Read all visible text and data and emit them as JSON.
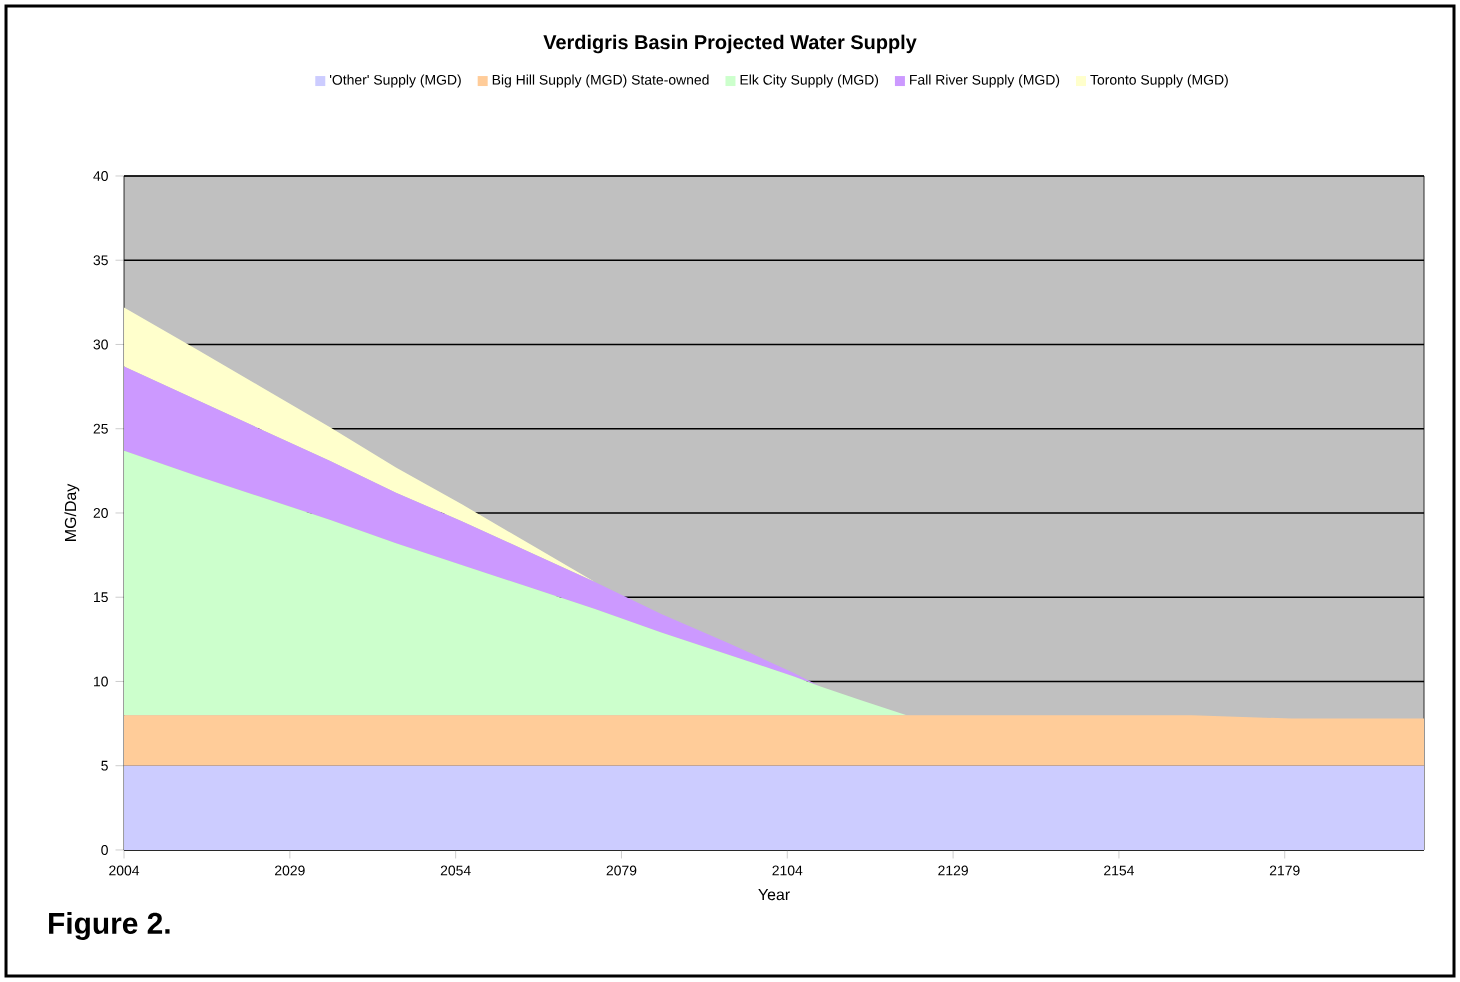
{
  "chart_data": {
    "type": "area",
    "stacked": true,
    "title": "Verdigris Basin Projected Water Supply",
    "xlabel": "Year",
    "ylabel": "MG/Day",
    "x": [
      2004,
      2015,
      2025,
      2035,
      2045,
      2055,
      2065,
      2075,
      2085,
      2095,
      2105,
      2109,
      2115,
      2122,
      2135,
      2150,
      2165,
      2180,
      2200
    ],
    "series": [
      {
        "name": "'Other' Supply (MGD)",
        "color": "#ccccff",
        "values": [
          5,
          5,
          5,
          5,
          5,
          5,
          5,
          5,
          5,
          5,
          5,
          5,
          5,
          5,
          5,
          5,
          5,
          5,
          5
        ]
      },
      {
        "name": "Big Hill Supply (MGD) State-owned",
        "color": "#ffcc99",
        "values": [
          3,
          3,
          3,
          3,
          3,
          3,
          3,
          3,
          3,
          3,
          3,
          3,
          3,
          3,
          3,
          3,
          3,
          2.8,
          2.8
        ]
      },
      {
        "name": "Elk City Supply (MGD)",
        "color": "#ccffcc",
        "values": [
          15.7,
          14.2,
          12.9,
          11.6,
          10.2,
          8.9,
          7.6,
          6.3,
          4.9,
          3.6,
          2.3,
          1.7,
          0.9,
          0,
          0,
          0,
          0,
          0,
          0
        ]
      },
      {
        "name": "Fall River Supply (MGD)",
        "color": "#cc99ff",
        "values": [
          5,
          4.5,
          4.0,
          3.5,
          3.0,
          2.6,
          2.1,
          1.6,
          1.1,
          0.7,
          0.2,
          0,
          0,
          0,
          0,
          0,
          0,
          0,
          0
        ]
      },
      {
        "name": "Toronto Supply (MGD)",
        "color": "#ffffcc",
        "values": [
          3.5,
          3.0,
          2.5,
          2.0,
          1.5,
          1.0,
          0.5,
          0,
          0,
          0,
          0,
          0,
          0,
          0,
          0,
          0,
          0,
          0,
          0
        ]
      }
    ],
    "xlim": [
      2004,
      2200
    ],
    "xticks": [
      2004,
      2029,
      2054,
      2079,
      2104,
      2129,
      2154,
      2179
    ],
    "ylim": [
      0,
      40
    ],
    "yticks": [
      0,
      5,
      10,
      15,
      20,
      25,
      30,
      35,
      40
    ],
    "grid": "y",
    "legend": "top",
    "annotations": [
      "Figure 2."
    ]
  }
}
